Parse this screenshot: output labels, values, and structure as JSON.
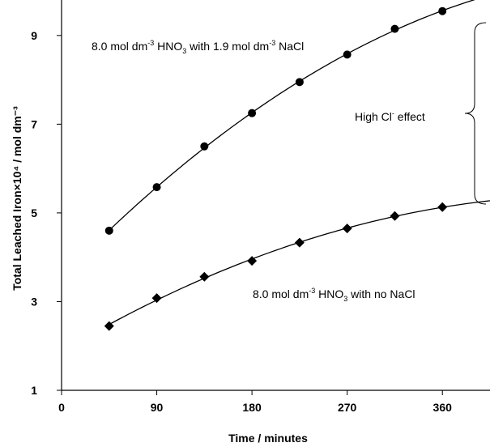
{
  "chart_data": {
    "type": "line",
    "xlabel": "Time / minutes",
    "ylabel": "Total Leached Iron×10⁴ /  mol dm⁻³",
    "xlim": [
      0,
      405
    ],
    "ylim": [
      1,
      9.8
    ],
    "x_ticks": [
      "0",
      "90",
      "180",
      "270",
      "360"
    ],
    "y_ticks": [
      "1",
      "3",
      "5",
      "7",
      "9"
    ],
    "grid": false,
    "series": [
      {
        "name": "8.0 mol dm-3 HNO3 with 1.9 mol dm-3 NaCl",
        "marker": "circle",
        "x": [
          45,
          90,
          135,
          180,
          225,
          270,
          315,
          360
        ],
        "y": [
          4.6,
          5.58,
          6.5,
          7.25,
          7.95,
          8.57,
          9.15,
          9.55
        ]
      },
      {
        "name": "8.0 mol dm-3 HNO3 with no NaCl",
        "marker": "diamond",
        "x": [
          45,
          90,
          135,
          180,
          225,
          270,
          315,
          360
        ],
        "y": [
          2.45,
          3.08,
          3.56,
          3.92,
          4.33,
          4.65,
          4.93,
          5.13
        ]
      }
    ],
    "annotations": {
      "upper_label": {
        "pre": "8.0 mol dm",
        "sup1": "-3",
        "mid1": " HNO",
        "sub": "3",
        "post": " with 1.9 mol dm",
        "sup2": "-3",
        "tail": " NaCl"
      },
      "lower_label": {
        "pre": "8.0 mol dm",
        "sup1": "-3",
        "mid1": " HNO",
        "sub": "3",
        "post": " with no NaCl"
      },
      "effect_label": {
        "pre": "High Cl",
        "sup": "-",
        "post": " effect"
      }
    }
  }
}
